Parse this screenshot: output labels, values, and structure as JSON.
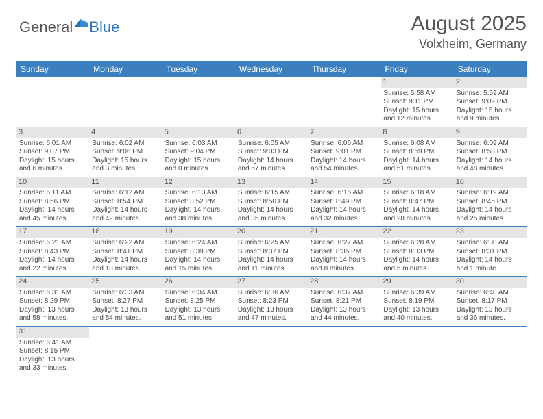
{
  "logo": {
    "general": "General",
    "blue": "Blue"
  },
  "title": "August 2025",
  "location": "Volxheim, Germany",
  "colors": {
    "header_bg": "#3b7fbf",
    "header_text": "#ffffff",
    "daynum_bg": "#e5e5e5",
    "text": "#4a4a4a",
    "title_text": "#555555",
    "row_border": "#3b7fbf"
  },
  "weekdays": [
    "Sunday",
    "Monday",
    "Tuesday",
    "Wednesday",
    "Thursday",
    "Friday",
    "Saturday"
  ],
  "weeks": [
    [
      {
        "n": "",
        "sr": "",
        "ss": "",
        "d1": "",
        "d2": ""
      },
      {
        "n": "",
        "sr": "",
        "ss": "",
        "d1": "",
        "d2": ""
      },
      {
        "n": "",
        "sr": "",
        "ss": "",
        "d1": "",
        "d2": ""
      },
      {
        "n": "",
        "sr": "",
        "ss": "",
        "d1": "",
        "d2": ""
      },
      {
        "n": "",
        "sr": "",
        "ss": "",
        "d1": "",
        "d2": ""
      },
      {
        "n": "1",
        "sr": "Sunrise: 5:58 AM",
        "ss": "Sunset: 9:11 PM",
        "d1": "Daylight: 15 hours",
        "d2": "and 12 minutes."
      },
      {
        "n": "2",
        "sr": "Sunrise: 5:59 AM",
        "ss": "Sunset: 9:09 PM",
        "d1": "Daylight: 15 hours",
        "d2": "and 9 minutes."
      }
    ],
    [
      {
        "n": "3",
        "sr": "Sunrise: 6:01 AM",
        "ss": "Sunset: 9:07 PM",
        "d1": "Daylight: 15 hours",
        "d2": "and 6 minutes."
      },
      {
        "n": "4",
        "sr": "Sunrise: 6:02 AM",
        "ss": "Sunset: 9:06 PM",
        "d1": "Daylight: 15 hours",
        "d2": "and 3 minutes."
      },
      {
        "n": "5",
        "sr": "Sunrise: 6:03 AM",
        "ss": "Sunset: 9:04 PM",
        "d1": "Daylight: 15 hours",
        "d2": "and 0 minutes."
      },
      {
        "n": "6",
        "sr": "Sunrise: 6:05 AM",
        "ss": "Sunset: 9:03 PM",
        "d1": "Daylight: 14 hours",
        "d2": "and 57 minutes."
      },
      {
        "n": "7",
        "sr": "Sunrise: 6:06 AM",
        "ss": "Sunset: 9:01 PM",
        "d1": "Daylight: 14 hours",
        "d2": "and 54 minutes."
      },
      {
        "n": "8",
        "sr": "Sunrise: 6:08 AM",
        "ss": "Sunset: 8:59 PM",
        "d1": "Daylight: 14 hours",
        "d2": "and 51 minutes."
      },
      {
        "n": "9",
        "sr": "Sunrise: 6:09 AM",
        "ss": "Sunset: 8:58 PM",
        "d1": "Daylight: 14 hours",
        "d2": "and 48 minutes."
      }
    ],
    [
      {
        "n": "10",
        "sr": "Sunrise: 6:11 AM",
        "ss": "Sunset: 8:56 PM",
        "d1": "Daylight: 14 hours",
        "d2": "and 45 minutes."
      },
      {
        "n": "11",
        "sr": "Sunrise: 6:12 AM",
        "ss": "Sunset: 8:54 PM",
        "d1": "Daylight: 14 hours",
        "d2": "and 42 minutes."
      },
      {
        "n": "12",
        "sr": "Sunrise: 6:13 AM",
        "ss": "Sunset: 8:52 PM",
        "d1": "Daylight: 14 hours",
        "d2": "and 38 minutes."
      },
      {
        "n": "13",
        "sr": "Sunrise: 6:15 AM",
        "ss": "Sunset: 8:50 PM",
        "d1": "Daylight: 14 hours",
        "d2": "and 35 minutes."
      },
      {
        "n": "14",
        "sr": "Sunrise: 6:16 AM",
        "ss": "Sunset: 8:49 PM",
        "d1": "Daylight: 14 hours",
        "d2": "and 32 minutes."
      },
      {
        "n": "15",
        "sr": "Sunrise: 6:18 AM",
        "ss": "Sunset: 8:47 PM",
        "d1": "Daylight: 14 hours",
        "d2": "and 28 minutes."
      },
      {
        "n": "16",
        "sr": "Sunrise: 6:19 AM",
        "ss": "Sunset: 8:45 PM",
        "d1": "Daylight: 14 hours",
        "d2": "and 25 minutes."
      }
    ],
    [
      {
        "n": "17",
        "sr": "Sunrise: 6:21 AM",
        "ss": "Sunset: 8:43 PM",
        "d1": "Daylight: 14 hours",
        "d2": "and 22 minutes."
      },
      {
        "n": "18",
        "sr": "Sunrise: 6:22 AM",
        "ss": "Sunset: 8:41 PM",
        "d1": "Daylight: 14 hours",
        "d2": "and 18 minutes."
      },
      {
        "n": "19",
        "sr": "Sunrise: 6:24 AM",
        "ss": "Sunset: 8:39 PM",
        "d1": "Daylight: 14 hours",
        "d2": "and 15 minutes."
      },
      {
        "n": "20",
        "sr": "Sunrise: 6:25 AM",
        "ss": "Sunset: 8:37 PM",
        "d1": "Daylight: 14 hours",
        "d2": "and 11 minutes."
      },
      {
        "n": "21",
        "sr": "Sunrise: 6:27 AM",
        "ss": "Sunset: 8:35 PM",
        "d1": "Daylight: 14 hours",
        "d2": "and 8 minutes."
      },
      {
        "n": "22",
        "sr": "Sunrise: 6:28 AM",
        "ss": "Sunset: 8:33 PM",
        "d1": "Daylight: 14 hours",
        "d2": "and 5 minutes."
      },
      {
        "n": "23",
        "sr": "Sunrise: 6:30 AM",
        "ss": "Sunset: 8:31 PM",
        "d1": "Daylight: 14 hours",
        "d2": "and 1 minute."
      }
    ],
    [
      {
        "n": "24",
        "sr": "Sunrise: 6:31 AM",
        "ss": "Sunset: 8:29 PM",
        "d1": "Daylight: 13 hours",
        "d2": "and 58 minutes."
      },
      {
        "n": "25",
        "sr": "Sunrise: 6:33 AM",
        "ss": "Sunset: 8:27 PM",
        "d1": "Daylight: 13 hours",
        "d2": "and 54 minutes."
      },
      {
        "n": "26",
        "sr": "Sunrise: 6:34 AM",
        "ss": "Sunset: 8:25 PM",
        "d1": "Daylight: 13 hours",
        "d2": "and 51 minutes."
      },
      {
        "n": "27",
        "sr": "Sunrise: 6:36 AM",
        "ss": "Sunset: 8:23 PM",
        "d1": "Daylight: 13 hours",
        "d2": "and 47 minutes."
      },
      {
        "n": "28",
        "sr": "Sunrise: 6:37 AM",
        "ss": "Sunset: 8:21 PM",
        "d1": "Daylight: 13 hours",
        "d2": "and 44 minutes."
      },
      {
        "n": "29",
        "sr": "Sunrise: 6:39 AM",
        "ss": "Sunset: 8:19 PM",
        "d1": "Daylight: 13 hours",
        "d2": "and 40 minutes."
      },
      {
        "n": "30",
        "sr": "Sunrise: 6:40 AM",
        "ss": "Sunset: 8:17 PM",
        "d1": "Daylight: 13 hours",
        "d2": "and 36 minutes."
      }
    ],
    [
      {
        "n": "31",
        "sr": "Sunrise: 6:41 AM",
        "ss": "Sunset: 8:15 PM",
        "d1": "Daylight: 13 hours",
        "d2": "and 33 minutes."
      },
      {
        "n": "",
        "sr": "",
        "ss": "",
        "d1": "",
        "d2": ""
      },
      {
        "n": "",
        "sr": "",
        "ss": "",
        "d1": "",
        "d2": ""
      },
      {
        "n": "",
        "sr": "",
        "ss": "",
        "d1": "",
        "d2": ""
      },
      {
        "n": "",
        "sr": "",
        "ss": "",
        "d1": "",
        "d2": ""
      },
      {
        "n": "",
        "sr": "",
        "ss": "",
        "d1": "",
        "d2": ""
      },
      {
        "n": "",
        "sr": "",
        "ss": "",
        "d1": "",
        "d2": ""
      }
    ]
  ]
}
